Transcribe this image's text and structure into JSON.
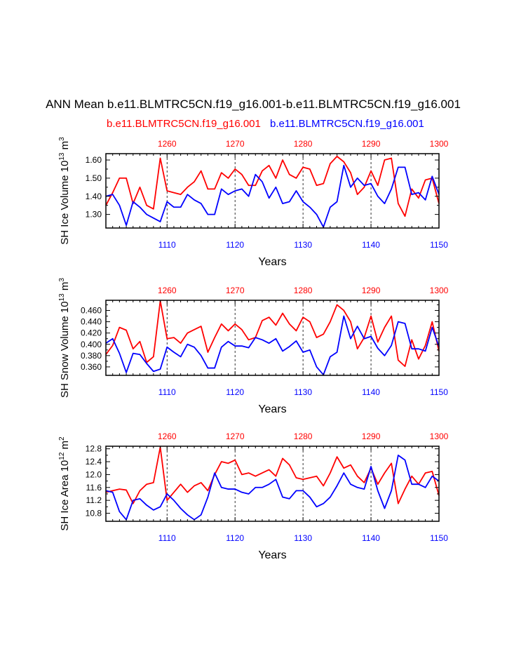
{
  "title": "ANN Mean b.e11.BLMTRC5CN.f19_g16.001-b.e11.BLMTRC5CN.f19_g16.001",
  "legend": {
    "red_label": "b.e11.BLMTRC5CN.f19_g16.001",
    "blue_label": "b.e11.BLMTRC5CN.f19_g16.001"
  },
  "colors": {
    "red": "#ff0000",
    "blue": "#0000ff",
    "axis": "#000000"
  },
  "chart_data": [
    {
      "type": "line",
      "ylabel": "SH Ice Volume 10^13 m^3",
      "ylabel_main": "SH Ice Volume 10",
      "ylabel_exp": "13",
      "ylabel_unit": "m",
      "ylabel_unit_exp": "3",
      "xlabel": "Years",
      "xlim_bottom": [
        1101,
        1150
      ],
      "xlim_top": [
        1251,
        1300
      ],
      "ylim": [
        1.225,
        1.635
      ],
      "yticks": [
        1.3,
        1.4,
        1.5,
        1.6
      ],
      "ytick_labels": [
        "1.30",
        "1.40",
        "1.50",
        "1.60"
      ],
      "bottom_ticks": [
        "1110",
        "1120",
        "1130",
        "1140",
        "1150"
      ],
      "top_ticks": [
        "1260",
        "1270",
        "1280",
        "1290",
        "1300"
      ],
      "series": [
        {
          "name": "red",
          "color": "red",
          "axis": "top",
          "x_start": 1251,
          "values": [
            1.35,
            1.42,
            1.5,
            1.5,
            1.36,
            1.45,
            1.35,
            1.33,
            1.61,
            1.43,
            1.42,
            1.41,
            1.45,
            1.48,
            1.54,
            1.44,
            1.44,
            1.53,
            1.5,
            1.55,
            1.52,
            1.46,
            1.46,
            1.54,
            1.57,
            1.5,
            1.6,
            1.52,
            1.5,
            1.56,
            1.55,
            1.46,
            1.47,
            1.58,
            1.62,
            1.59,
            1.53,
            1.41,
            1.45,
            1.54,
            1.46,
            1.6,
            1.61,
            1.36,
            1.29,
            1.44,
            1.39,
            1.49,
            1.5,
            1.36
          ]
        },
        {
          "name": "blue",
          "color": "blue",
          "axis": "bottom",
          "x_start": 1101,
          "values": [
            1.4,
            1.41,
            1.35,
            1.24,
            1.37,
            1.34,
            1.3,
            1.28,
            1.26,
            1.37,
            1.34,
            1.34,
            1.41,
            1.38,
            1.36,
            1.3,
            1.3,
            1.44,
            1.41,
            1.43,
            1.44,
            1.4,
            1.52,
            1.48,
            1.39,
            1.45,
            1.36,
            1.37,
            1.43,
            1.37,
            1.34,
            1.3,
            1.23,
            1.34,
            1.37,
            1.57,
            1.45,
            1.5,
            1.46,
            1.47,
            1.4,
            1.36,
            1.44,
            1.56,
            1.56,
            1.41,
            1.42,
            1.38,
            1.51,
            1.41
          ]
        }
      ]
    },
    {
      "type": "line",
      "ylabel": "SH Snow Volume 10^13 m^3",
      "ylabel_main": "SH Snow Volume 10",
      "ylabel_exp": "13",
      "ylabel_unit": "m",
      "ylabel_unit_exp": "3",
      "xlabel": "Years",
      "xlim_bottom": [
        1101,
        1150
      ],
      "xlim_top": [
        1251,
        1300
      ],
      "ylim": [
        0.345,
        0.478
      ],
      "yticks": [
        0.36,
        0.38,
        0.4,
        0.42,
        0.44,
        0.46
      ],
      "ytick_labels": [
        "0.360",
        "0.380",
        "0.400",
        "0.420",
        "0.440",
        "0.460"
      ],
      "bottom_ticks": [
        "1110",
        "1120",
        "1130",
        "1140",
        "1150"
      ],
      "top_ticks": [
        "1260",
        "1270",
        "1280",
        "1290",
        "1300"
      ],
      "series": [
        {
          "name": "red",
          "color": "red",
          "axis": "top",
          "x_start": 1251,
          "values": [
            0.382,
            0.398,
            0.43,
            0.425,
            0.392,
            0.405,
            0.368,
            0.378,
            0.477,
            0.41,
            0.412,
            0.402,
            0.42,
            0.426,
            0.432,
            0.386,
            0.412,
            0.436,
            0.424,
            0.436,
            0.426,
            0.408,
            0.412,
            0.442,
            0.448,
            0.434,
            0.455,
            0.436,
            0.424,
            0.448,
            0.44,
            0.412,
            0.418,
            0.44,
            0.47,
            0.46,
            0.44,
            0.392,
            0.412,
            0.45,
            0.404,
            0.43,
            0.45,
            0.372,
            0.361,
            0.408,
            0.374,
            0.398,
            0.44,
            0.388
          ]
        },
        {
          "name": "blue",
          "color": "blue",
          "axis": "bottom",
          "x_start": 1101,
          "values": [
            0.402,
            0.41,
            0.384,
            0.35,
            0.384,
            0.382,
            0.366,
            0.352,
            0.356,
            0.395,
            0.386,
            0.378,
            0.4,
            0.395,
            0.38,
            0.358,
            0.358,
            0.395,
            0.405,
            0.397,
            0.397,
            0.394,
            0.412,
            0.408,
            0.402,
            0.41,
            0.388,
            0.396,
            0.406,
            0.386,
            0.39,
            0.36,
            0.346,
            0.378,
            0.386,
            0.45,
            0.41,
            0.432,
            0.41,
            0.414,
            0.393,
            0.38,
            0.398,
            0.44,
            0.437,
            0.392,
            0.392,
            0.388,
            0.43,
            0.396
          ]
        }
      ]
    },
    {
      "type": "line",
      "ylabel": "SH Ice Area 10^12 m^2",
      "ylabel_main": "SH Ice Area 10",
      "ylabel_exp": "12",
      "ylabel_unit": "m",
      "ylabel_unit_exp": "2",
      "xlabel": "Years",
      "xlim_bottom": [
        1101,
        1150
      ],
      "xlim_top": [
        1251,
        1300
      ],
      "ylim": [
        10.55,
        12.88
      ],
      "yticks": [
        10.8,
        11.2,
        11.6,
        12.0,
        12.4,
        12.8
      ],
      "ytick_labels": [
        "10.8",
        "11.2",
        "11.6",
        "12.0",
        "12.4",
        "12.8"
      ],
      "bottom_ticks": [
        "1110",
        "1120",
        "1130",
        "1140",
        "1150"
      ],
      "top_ticks": [
        "1260",
        "1270",
        "1280",
        "1290",
        "1300"
      ],
      "series": [
        {
          "name": "red",
          "color": "red",
          "axis": "top",
          "x_start": 1251,
          "values": [
            11.45,
            11.5,
            11.55,
            11.52,
            11.1,
            11.5,
            11.7,
            11.75,
            12.85,
            11.2,
            11.45,
            11.7,
            11.45,
            11.65,
            11.75,
            11.5,
            12.0,
            12.4,
            12.35,
            12.45,
            12.0,
            12.05,
            11.95,
            12.05,
            12.15,
            11.95,
            12.5,
            12.3,
            11.9,
            11.85,
            11.9,
            11.95,
            11.65,
            12.05,
            12.55,
            12.2,
            12.3,
            11.95,
            11.75,
            12.2,
            11.7,
            12.05,
            12.35,
            11.1,
            11.55,
            11.95,
            11.7,
            12.05,
            12.1,
            11.35
          ]
        },
        {
          "name": "blue",
          "color": "blue",
          "axis": "bottom",
          "x_start": 1101,
          "values": [
            11.5,
            11.45,
            10.85,
            10.6,
            11.2,
            11.25,
            11.05,
            10.9,
            11.0,
            11.4,
            11.2,
            10.95,
            10.75,
            10.6,
            10.75,
            11.3,
            12.05,
            11.6,
            11.55,
            11.55,
            11.45,
            11.4,
            11.6,
            11.6,
            11.7,
            11.85,
            11.3,
            11.25,
            11.5,
            11.5,
            11.3,
            11.0,
            11.1,
            11.3,
            11.65,
            12.05,
            11.7,
            11.6,
            11.55,
            12.25,
            11.5,
            10.95,
            11.5,
            12.6,
            12.45,
            11.7,
            11.7,
            11.6,
            11.95,
            11.8
          ]
        }
      ]
    }
  ]
}
